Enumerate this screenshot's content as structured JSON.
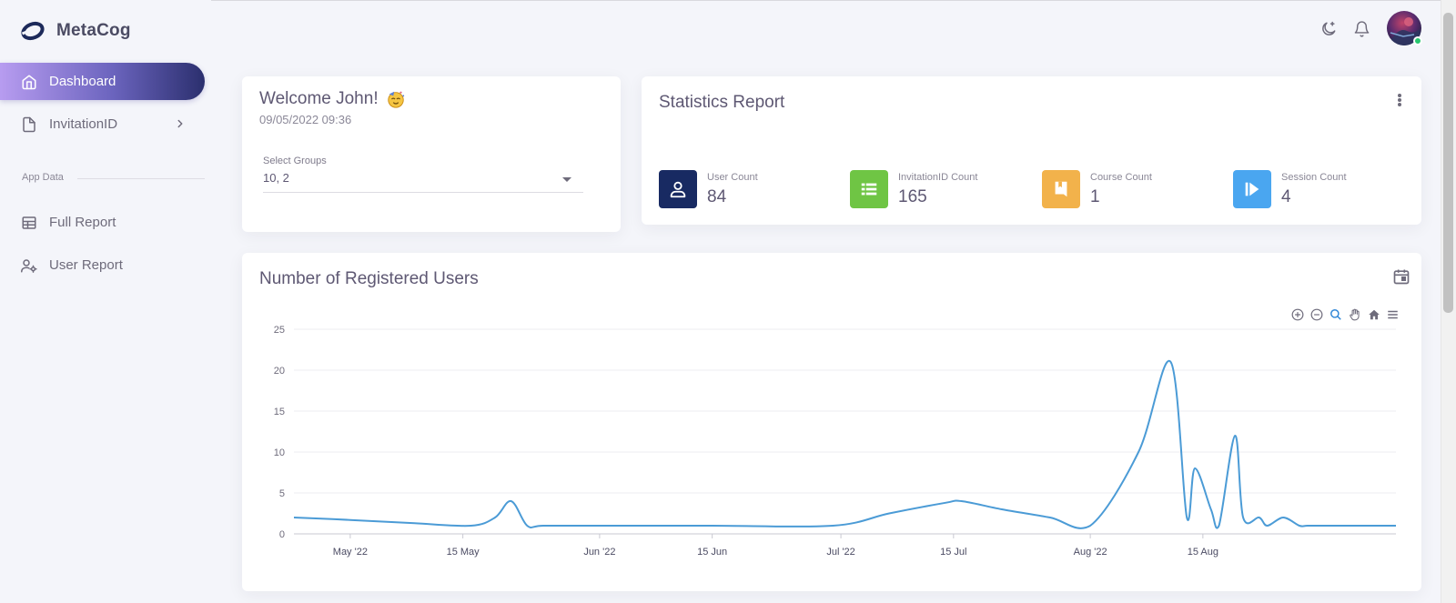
{
  "app": {
    "brand": "MetaCog"
  },
  "sidebar": {
    "items": [
      {
        "label": "Dashboard",
        "icon": "home-icon"
      },
      {
        "label": "InvitationID",
        "icon": "file-icon"
      },
      {
        "label": "Full Report",
        "icon": "table-icon"
      },
      {
        "label": "User Report",
        "icon": "user-settings-icon"
      }
    ],
    "section_header": "App Data"
  },
  "topbar": {
    "icons": [
      "moon-star-icon",
      "bell-icon"
    ],
    "avatar_status_color": "#28c76f"
  },
  "welcome": {
    "title": "Welcome John!",
    "date": "09/05/2022 09:36",
    "select_label": "Select Groups",
    "select_value": "10, 2"
  },
  "stats": {
    "title": "Statistics Report",
    "items": [
      {
        "label": "User Count",
        "value": "84",
        "color": "#182a62",
        "icon": "user-icon"
      },
      {
        "label": "InvitationID Count",
        "value": "165",
        "color": "#6fc544",
        "icon": "list-icon"
      },
      {
        "label": "Course Count",
        "value": "1",
        "color": "#f2b24b",
        "icon": "bookmark-icon"
      },
      {
        "label": "Session Count",
        "value": "4",
        "color": "#4aa6f0",
        "icon": "play-next-icon"
      }
    ]
  },
  "chart_card": {
    "title": "Number of Registered Users",
    "toolbar": [
      "zoom-in-icon",
      "zoom-out-icon",
      "zoom-select-icon",
      "pan-hand-icon",
      "reset-home-icon",
      "menu-icon"
    ]
  },
  "chart_data": {
    "type": "line",
    "title": "Number of Registered Users",
    "xlabel": "",
    "ylabel": "",
    "x_ticks": [
      "May '22",
      "15 May",
      "Jun '22",
      "15 Jun",
      "Jul '22",
      "15 Jul",
      "Aug '22",
      "15 Aug"
    ],
    "y_ticks": [
      0,
      5,
      10,
      15,
      20,
      25
    ],
    "ylim": [
      0,
      25
    ],
    "xlim": [
      "2022-04-24",
      "2022-09-08"
    ],
    "grid": true,
    "line_color": "#4b9bd6",
    "series": [
      {
        "x": [
          "2022-04-24",
          "2022-05-01",
          "2022-05-09",
          "2022-05-16",
          "2022-05-19",
          "2022-05-21",
          "2022-05-23",
          "2022-05-25",
          "2022-06-01",
          "2022-06-15",
          "2022-06-30",
          "2022-07-07",
          "2022-07-14",
          "2022-07-16",
          "2022-07-21",
          "2022-07-27",
          "2022-08-01",
          "2022-08-07",
          "2022-08-11",
          "2022-08-13",
          "2022-08-14",
          "2022-08-16",
          "2022-08-17",
          "2022-08-19",
          "2022-08-20",
          "2022-08-22",
          "2022-08-23",
          "2022-08-25",
          "2022-08-27",
          "2022-08-28",
          "2022-08-30",
          "2022-09-08"
        ],
        "y": [
          2,
          1.7,
          1.3,
          1,
          2,
          4,
          1,
          1,
          1,
          1,
          1,
          2.5,
          3.8,
          4,
          3,
          2,
          1,
          10,
          21,
          2,
          8,
          3,
          1,
          12,
          2,
          2,
          1,
          2,
          1,
          1,
          1,
          1
        ]
      }
    ]
  }
}
